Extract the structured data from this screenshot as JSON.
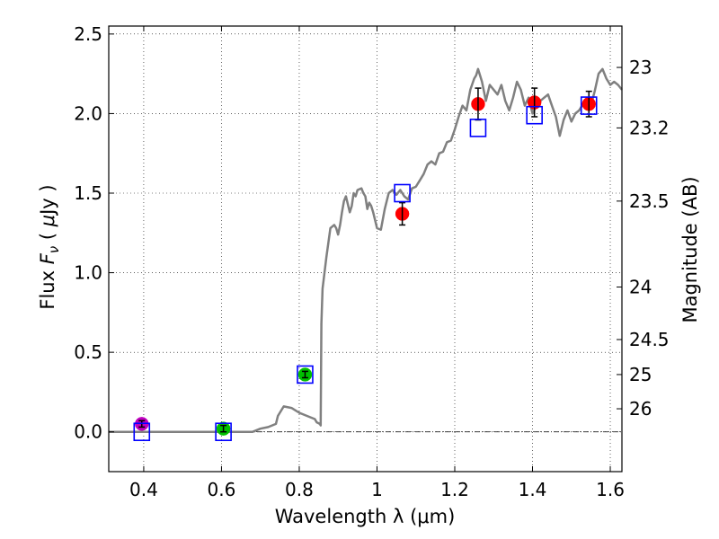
{
  "chart_data": {
    "type": "line",
    "title": "",
    "xlabel": "Wavelength  λ (μm)",
    "ylabel_left_parts": [
      "Flux  ",
      "F",
      "ν",
      "  ( ",
      "μ",
      "Jy )"
    ],
    "ylabel_right": "Magnitude (AB)",
    "xlim": [
      0.31,
      1.63
    ],
    "ylim": [
      -0.25,
      2.55
    ],
    "grid": true,
    "x_ticks": [
      0.4,
      0.6,
      0.8,
      1.0,
      1.2,
      1.4,
      1.6
    ],
    "x_tick_labels": [
      "0.4",
      "0.6",
      "0.8",
      "1",
      "1.2",
      "1.4",
      "1.6"
    ],
    "y_ticks": [
      0.0,
      0.5,
      1.0,
      1.5,
      2.0,
      2.5
    ],
    "y_tick_labels": [
      "0.0",
      "0.5",
      "1.0",
      "1.5",
      "2.0",
      "2.5"
    ],
    "right_axis_ticks": [
      {
        "label": "23",
        "flux": 2.29
      },
      {
        "label": "23.2",
        "flux": 1.91
      },
      {
        "label": "23.5",
        "flux": 1.45
      },
      {
        "label": "24",
        "flux": 0.91
      },
      {
        "label": "24.5",
        "flux": 0.58
      },
      {
        "label": "25",
        "flux": 0.36
      },
      {
        "label": "26",
        "flux": 0.145
      }
    ],
    "series": [
      {
        "name": "model-spectrum",
        "kind": "line",
        "color": "#808080",
        "x": [
          0.31,
          0.5,
          0.68,
          0.7,
          0.72,
          0.74,
          0.745,
          0.76,
          0.78,
          0.8,
          0.82,
          0.84,
          0.845,
          0.853,
          0.855,
          0.857,
          0.86,
          0.87,
          0.88,
          0.885,
          0.89,
          0.895,
          0.9,
          0.905,
          0.91,
          0.915,
          0.92,
          0.93,
          0.935,
          0.94,
          0.945,
          0.95,
          0.96,
          0.965,
          0.97,
          0.975,
          0.98,
          0.985,
          0.99,
          1.0,
          1.01,
          1.02,
          1.03,
          1.04,
          1.05,
          1.06,
          1.07,
          1.08,
          1.09,
          1.1,
          1.11,
          1.12,
          1.13,
          1.14,
          1.15,
          1.16,
          1.17,
          1.18,
          1.19,
          1.2,
          1.21,
          1.22,
          1.23,
          1.24,
          1.25,
          1.255,
          1.26,
          1.27,
          1.28,
          1.29,
          1.3,
          1.31,
          1.32,
          1.33,
          1.34,
          1.35,
          1.36,
          1.37,
          1.38,
          1.39,
          1.4,
          1.41,
          1.42,
          1.43,
          1.44,
          1.45,
          1.46,
          1.47,
          1.48,
          1.49,
          1.5,
          1.51,
          1.52,
          1.53,
          1.54,
          1.55,
          1.56,
          1.57,
          1.58,
          1.59,
          1.6,
          1.61,
          1.62,
          1.63
        ],
        "y": [
          0.0,
          0.0,
          0.0,
          0.02,
          0.03,
          0.05,
          0.1,
          0.16,
          0.15,
          0.12,
          0.1,
          0.08,
          0.06,
          0.05,
          0.04,
          0.68,
          0.9,
          1.1,
          1.28,
          1.29,
          1.3,
          1.28,
          1.24,
          1.3,
          1.38,
          1.45,
          1.48,
          1.38,
          1.42,
          1.5,
          1.48,
          1.52,
          1.53,
          1.5,
          1.48,
          1.4,
          1.44,
          1.42,
          1.38,
          1.28,
          1.27,
          1.4,
          1.5,
          1.52,
          1.49,
          1.52,
          1.48,
          1.46,
          1.53,
          1.54,
          1.58,
          1.62,
          1.68,
          1.7,
          1.68,
          1.75,
          1.76,
          1.82,
          1.83,
          1.9,
          1.98,
          2.05,
          2.02,
          2.15,
          2.22,
          2.24,
          2.28,
          2.2,
          2.08,
          2.18,
          2.15,
          2.12,
          2.18,
          2.08,
          2.02,
          2.1,
          2.2,
          2.15,
          2.05,
          2.1,
          2.0,
          2.05,
          2.08,
          2.1,
          2.12,
          2.05,
          1.98,
          1.86,
          1.96,
          2.02,
          1.95,
          2.0,
          2.02,
          2.06,
          2.1,
          2.05,
          2.14,
          2.25,
          2.28,
          2.22,
          2.18,
          2.2,
          2.18,
          2.15
        ]
      },
      {
        "name": "model-photometry",
        "kind": "open-square",
        "color": "#0000ff",
        "x": [
          0.395,
          0.605,
          0.815,
          1.065,
          1.26,
          1.405,
          1.545
        ],
        "y": [
          0.0,
          0.0,
          0.36,
          1.5,
          1.91,
          1.99,
          2.05
        ]
      },
      {
        "name": "observed-photometry",
        "kind": "filled-circle-errorbar",
        "x": [
          0.395,
          0.605,
          0.815,
          1.065,
          1.26,
          1.405,
          1.545
        ],
        "y": [
          0.05,
          0.02,
          0.36,
          1.37,
          2.06,
          2.07,
          2.06
        ],
        "yerr": [
          0.02,
          0.02,
          0.02,
          0.07,
          0.1,
          0.09,
          0.08
        ],
        "colors": [
          "#bf00bf",
          "#00bf00",
          "#00bf00",
          "#ff0000",
          "#ff0000",
          "#ff0000",
          "#ff0000"
        ]
      }
    ]
  }
}
